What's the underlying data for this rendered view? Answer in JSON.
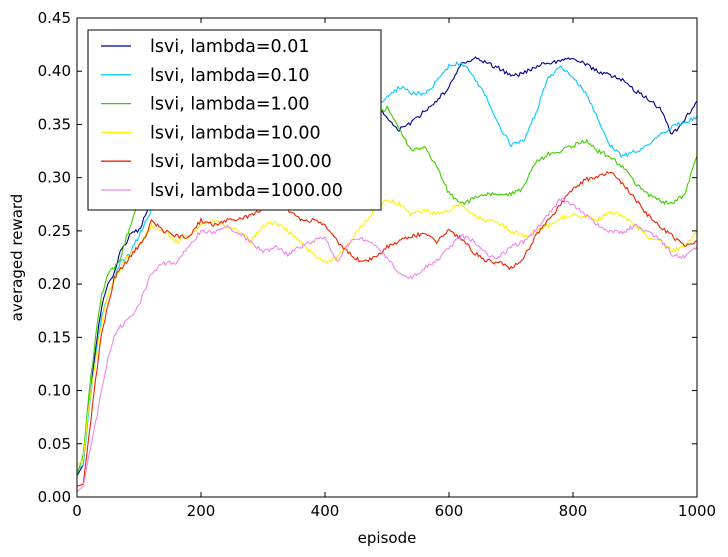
{
  "chart_data": {
    "type": "line",
    "xlabel": "episode",
    "ylabel": "averaged reward",
    "xlim": [
      0,
      1000
    ],
    "ylim": [
      0,
      0.45
    ],
    "x_ticks": [
      "0",
      "200",
      "400",
      "600",
      "800",
      "1000"
    ],
    "y_ticks": [
      "0.00",
      "0.05",
      "0.10",
      "0.15",
      "0.20",
      "0.25",
      "0.30",
      "0.35",
      "0.40",
      "0.45"
    ],
    "grid": false,
    "legend_position": "upper-left",
    "series": [
      {
        "name": "lsvi, lambda=0.01",
        "color": "#00008b",
        "points": [
          [
            0,
            0.02
          ],
          [
            10,
            0.03
          ],
          [
            20,
            0.09
          ],
          [
            30,
            0.14
          ],
          [
            40,
            0.18
          ],
          [
            50,
            0.2
          ],
          [
            60,
            0.21
          ],
          [
            70,
            0.23
          ],
          [
            80,
            0.24
          ],
          [
            90,
            0.25
          ],
          [
            100,
            0.25
          ],
          [
            120,
            0.28
          ],
          [
            140,
            0.3
          ],
          [
            200,
            0.33
          ],
          [
            300,
            0.34
          ],
          [
            400,
            0.34
          ],
          [
            460,
            0.35
          ],
          [
            480,
            0.37
          ],
          [
            500,
            0.355
          ],
          [
            520,
            0.345
          ],
          [
            540,
            0.352
          ],
          [
            560,
            0.362
          ],
          [
            580,
            0.372
          ],
          [
            600,
            0.385
          ],
          [
            620,
            0.408
          ],
          [
            640,
            0.412
          ],
          [
            660,
            0.408
          ],
          [
            680,
            0.403
          ],
          [
            700,
            0.395
          ],
          [
            720,
            0.398
          ],
          [
            740,
            0.404
          ],
          [
            760,
            0.408
          ],
          [
            780,
            0.41
          ],
          [
            800,
            0.413
          ],
          [
            820,
            0.407
          ],
          [
            840,
            0.4
          ],
          [
            860,
            0.396
          ],
          [
            880,
            0.392
          ],
          [
            900,
            0.382
          ],
          [
            920,
            0.375
          ],
          [
            940,
            0.365
          ],
          [
            960,
            0.34
          ],
          [
            980,
            0.355
          ],
          [
            1000,
            0.372
          ]
        ]
      },
      {
        "name": "lsvi, lambda=0.10",
        "color": "#00ccff",
        "points": [
          [
            0,
            0.025
          ],
          [
            10,
            0.03
          ],
          [
            20,
            0.085
          ],
          [
            30,
            0.13
          ],
          [
            40,
            0.17
          ],
          [
            50,
            0.19
          ],
          [
            60,
            0.205
          ],
          [
            70,
            0.22
          ],
          [
            80,
            0.225
          ],
          [
            90,
            0.235
          ],
          [
            100,
            0.245
          ],
          [
            120,
            0.27
          ],
          [
            140,
            0.3
          ],
          [
            200,
            0.33
          ],
          [
            300,
            0.34
          ],
          [
            400,
            0.35
          ],
          [
            460,
            0.36
          ],
          [
            480,
            0.365
          ],
          [
            500,
            0.375
          ],
          [
            520,
            0.385
          ],
          [
            540,
            0.38
          ],
          [
            560,
            0.378
          ],
          [
            580,
            0.39
          ],
          [
            600,
            0.405
          ],
          [
            620,
            0.408
          ],
          [
            640,
            0.395
          ],
          [
            660,
            0.375
          ],
          [
            680,
            0.35
          ],
          [
            700,
            0.33
          ],
          [
            720,
            0.335
          ],
          [
            740,
            0.36
          ],
          [
            760,
            0.395
          ],
          [
            780,
            0.403
          ],
          [
            800,
            0.395
          ],
          [
            820,
            0.38
          ],
          [
            840,
            0.355
          ],
          [
            860,
            0.33
          ],
          [
            880,
            0.32
          ],
          [
            900,
            0.325
          ],
          [
            920,
            0.33
          ],
          [
            940,
            0.34
          ],
          [
            960,
            0.348
          ],
          [
            980,
            0.352
          ],
          [
            1000,
            0.358
          ]
        ]
      },
      {
        "name": "lsvi, lambda=1.00",
        "color": "#44cc00",
        "points": [
          [
            0,
            0.02
          ],
          [
            10,
            0.04
          ],
          [
            20,
            0.1
          ],
          [
            30,
            0.15
          ],
          [
            40,
            0.19
          ],
          [
            50,
            0.21
          ],
          [
            60,
            0.215
          ],
          [
            70,
            0.225
          ],
          [
            80,
            0.245
          ],
          [
            90,
            0.26
          ],
          [
            100,
            0.28
          ],
          [
            120,
            0.3
          ],
          [
            140,
            0.32
          ],
          [
            200,
            0.34
          ],
          [
            300,
            0.35
          ],
          [
            400,
            0.36
          ],
          [
            460,
            0.365
          ],
          [
            480,
            0.36
          ],
          [
            500,
            0.365
          ],
          [
            520,
            0.345
          ],
          [
            540,
            0.325
          ],
          [
            560,
            0.33
          ],
          [
            580,
            0.31
          ],
          [
            600,
            0.285
          ],
          [
            620,
            0.275
          ],
          [
            640,
            0.28
          ],
          [
            660,
            0.285
          ],
          [
            680,
            0.285
          ],
          [
            700,
            0.285
          ],
          [
            720,
            0.29
          ],
          [
            740,
            0.315
          ],
          [
            760,
            0.322
          ],
          [
            780,
            0.325
          ],
          [
            800,
            0.33
          ],
          [
            820,
            0.335
          ],
          [
            840,
            0.325
          ],
          [
            860,
            0.32
          ],
          [
            880,
            0.31
          ],
          [
            900,
            0.295
          ],
          [
            920,
            0.285
          ],
          [
            940,
            0.278
          ],
          [
            960,
            0.275
          ],
          [
            980,
            0.285
          ],
          [
            1000,
            0.32
          ]
        ]
      },
      {
        "name": "lsvi, lambda=10.00",
        "color": "#ffee00",
        "points": [
          [
            0,
            0.03
          ],
          [
            10,
            0.035
          ],
          [
            20,
            0.09
          ],
          [
            30,
            0.13
          ],
          [
            40,
            0.165
          ],
          [
            50,
            0.19
          ],
          [
            60,
            0.205
          ],
          [
            70,
            0.215
          ],
          [
            80,
            0.225
          ],
          [
            90,
            0.23
          ],
          [
            100,
            0.235
          ],
          [
            110,
            0.245
          ],
          [
            120,
            0.255
          ],
          [
            140,
            0.25
          ],
          [
            160,
            0.24
          ],
          [
            180,
            0.245
          ],
          [
            200,
            0.255
          ],
          [
            220,
            0.26
          ],
          [
            240,
            0.255
          ],
          [
            260,
            0.25
          ],
          [
            280,
            0.24
          ],
          [
            300,
            0.255
          ],
          [
            320,
            0.258
          ],
          [
            340,
            0.25
          ],
          [
            360,
            0.24
          ],
          [
            380,
            0.228
          ],
          [
            400,
            0.22
          ],
          [
            420,
            0.225
          ],
          [
            440,
            0.24
          ],
          [
            460,
            0.255
          ],
          [
            480,
            0.27
          ],
          [
            500,
            0.28
          ],
          [
            520,
            0.275
          ],
          [
            540,
            0.265
          ],
          [
            560,
            0.27
          ],
          [
            580,
            0.265
          ],
          [
            600,
            0.27
          ],
          [
            620,
            0.275
          ],
          [
            640,
            0.265
          ],
          [
            660,
            0.26
          ],
          [
            680,
            0.258
          ],
          [
            700,
            0.25
          ],
          [
            720,
            0.245
          ],
          [
            740,
            0.25
          ],
          [
            760,
            0.255
          ],
          [
            780,
            0.262
          ],
          [
            800,
            0.265
          ],
          [
            820,
            0.263
          ],
          [
            840,
            0.26
          ],
          [
            860,
            0.268
          ],
          [
            880,
            0.265
          ],
          [
            900,
            0.255
          ],
          [
            920,
            0.245
          ],
          [
            940,
            0.24
          ],
          [
            960,
            0.232
          ],
          [
            980,
            0.235
          ],
          [
            1000,
            0.25
          ]
        ]
      },
      {
        "name": "lsvi, lambda=100.00",
        "color": "#ee2200",
        "points": [
          [
            0,
            0.01
          ],
          [
            10,
            0.012
          ],
          [
            20,
            0.06
          ],
          [
            30,
            0.11
          ],
          [
            40,
            0.155
          ],
          [
            50,
            0.18
          ],
          [
            60,
            0.205
          ],
          [
            70,
            0.215
          ],
          [
            80,
            0.22
          ],
          [
            90,
            0.23
          ],
          [
            100,
            0.235
          ],
          [
            110,
            0.245
          ],
          [
            120,
            0.26
          ],
          [
            140,
            0.25
          ],
          [
            160,
            0.245
          ],
          [
            180,
            0.245
          ],
          [
            200,
            0.26
          ],
          [
            220,
            0.255
          ],
          [
            240,
            0.26
          ],
          [
            260,
            0.26
          ],
          [
            280,
            0.265
          ],
          [
            300,
            0.27
          ],
          [
            320,
            0.28
          ],
          [
            340,
            0.27
          ],
          [
            360,
            0.26
          ],
          [
            380,
            0.26
          ],
          [
            400,
            0.255
          ],
          [
            420,
            0.24
          ],
          [
            440,
            0.228
          ],
          [
            460,
            0.22
          ],
          [
            480,
            0.225
          ],
          [
            500,
            0.235
          ],
          [
            520,
            0.24
          ],
          [
            540,
            0.245
          ],
          [
            560,
            0.248
          ],
          [
            580,
            0.24
          ],
          [
            600,
            0.25
          ],
          [
            620,
            0.243
          ],
          [
            640,
            0.23
          ],
          [
            660,
            0.222
          ],
          [
            680,
            0.22
          ],
          [
            700,
            0.215
          ],
          [
            720,
            0.225
          ],
          [
            740,
            0.245
          ],
          [
            760,
            0.26
          ],
          [
            780,
            0.275
          ],
          [
            800,
            0.29
          ],
          [
            820,
            0.298
          ],
          [
            840,
            0.3
          ],
          [
            860,
            0.305
          ],
          [
            880,
            0.295
          ],
          [
            900,
            0.28
          ],
          [
            920,
            0.265
          ],
          [
            940,
            0.255
          ],
          [
            960,
            0.245
          ],
          [
            980,
            0.235
          ],
          [
            1000,
            0.24
          ]
        ]
      },
      {
        "name": "lsvi, lambda=1000.00",
        "color": "#ee88ee",
        "points": [
          [
            0,
            0.005
          ],
          [
            10,
            0.01
          ],
          [
            20,
            0.04
          ],
          [
            30,
            0.07
          ],
          [
            40,
            0.1
          ],
          [
            50,
            0.13
          ],
          [
            60,
            0.15
          ],
          [
            70,
            0.16
          ],
          [
            80,
            0.165
          ],
          [
            90,
            0.17
          ],
          [
            100,
            0.18
          ],
          [
            110,
            0.195
          ],
          [
            120,
            0.21
          ],
          [
            140,
            0.22
          ],
          [
            160,
            0.22
          ],
          [
            180,
            0.235
          ],
          [
            200,
            0.25
          ],
          [
            220,
            0.248
          ],
          [
            240,
            0.255
          ],
          [
            260,
            0.248
          ],
          [
            280,
            0.24
          ],
          [
            300,
            0.23
          ],
          [
            320,
            0.235
          ],
          [
            340,
            0.228
          ],
          [
            360,
            0.235
          ],
          [
            380,
            0.24
          ],
          [
            400,
            0.245
          ],
          [
            420,
            0.22
          ],
          [
            440,
            0.24
          ],
          [
            460,
            0.242
          ],
          [
            480,
            0.238
          ],
          [
            500,
            0.225
          ],
          [
            520,
            0.21
          ],
          [
            540,
            0.205
          ],
          [
            560,
            0.215
          ],
          [
            580,
            0.222
          ],
          [
            600,
            0.235
          ],
          [
            620,
            0.245
          ],
          [
            640,
            0.24
          ],
          [
            660,
            0.228
          ],
          [
            680,
            0.225
          ],
          [
            700,
            0.235
          ],
          [
            720,
            0.24
          ],
          [
            740,
            0.25
          ],
          [
            760,
            0.265
          ],
          [
            780,
            0.28
          ],
          [
            800,
            0.275
          ],
          [
            820,
            0.265
          ],
          [
            840,
            0.255
          ],
          [
            860,
            0.25
          ],
          [
            880,
            0.248
          ],
          [
            900,
            0.255
          ],
          [
            920,
            0.25
          ],
          [
            940,
            0.242
          ],
          [
            960,
            0.228
          ],
          [
            980,
            0.225
          ],
          [
            1000,
            0.235
          ]
        ]
      }
    ]
  }
}
